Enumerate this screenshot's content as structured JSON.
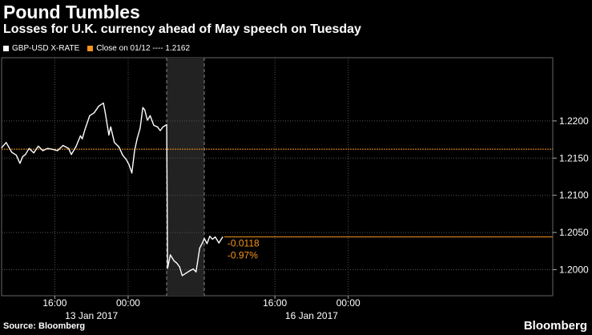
{
  "header": {
    "title": "Pound Tumbles",
    "subtitle": "Losses for U.K. currency ahead of May speech on Tuesday"
  },
  "legend": [
    {
      "label": "GBP-USD X-RATE",
      "color": "#ffffff"
    },
    {
      "label": "Close on 01/12 ---- 1.2162",
      "color": "#f7941d"
    }
  ],
  "footer": {
    "source": "Source: Bloomberg",
    "brand": "Bloomberg"
  },
  "chart_data": {
    "type": "line",
    "title": "Pound Tumbles",
    "subtitle": "Losses for U.K. currency ahead of May speech on Tuesday",
    "xlabel": "",
    "ylabel": "",
    "x_unit": "hours from 16:00 on 13 Jan 2017",
    "ylim": [
      1.1965,
      1.2285
    ],
    "xlim": [
      -5.8,
      54.3
    ],
    "y_ticks": [
      1.2,
      1.205,
      1.21,
      1.215,
      1.22
    ],
    "y_tick_labels": [
      "1.2000",
      "1.2050",
      "1.2100",
      "1.2150",
      "1.2200"
    ],
    "x_ticks": [
      0,
      8,
      24,
      32
    ],
    "x_tick_labels": [
      "16:00",
      "00:00",
      "16:00",
      "00:00"
    ],
    "date_labels": [
      {
        "text": "13 Jan 2017",
        "x": 4
      },
      {
        "text": "16 Jan 2017",
        "x": 28
      }
    ],
    "weekend_gap": {
      "start": 12.2,
      "end": 16.3
    },
    "grid": true,
    "reference_line": {
      "label": "Close on 01/12",
      "value": 1.2162,
      "color": "#f7941d"
    },
    "annotation": {
      "change": "-0.0118",
      "pct": "-0.97%",
      "level": 1.2044
    },
    "series": [
      {
        "name": "GBP-USD X-RATE",
        "color": "#ffffff",
        "x": [
          -5.8,
          -5.3,
          -4.7,
          -4.2,
          -3.8,
          -3.5,
          -3.2,
          -2.8,
          -2.3,
          -1.8,
          -1.3,
          -0.8,
          -0.3,
          0.3,
          0.9,
          1.5,
          1.8,
          2.3,
          2.8,
          3.0,
          3.3,
          3.8,
          4.3,
          4.8,
          5.3,
          5.5,
          5.9,
          6.1,
          6.5,
          7.0,
          7.4,
          7.8,
          8.1,
          8.4,
          8.7,
          9.0,
          9.3,
          9.6,
          9.8,
          10.1,
          10.4,
          10.8,
          11.2,
          11.5,
          11.8,
          12.2,
          12.25,
          12.3,
          12.6,
          13.0,
          13.3,
          13.6,
          13.9,
          14.4,
          14.8,
          15.1,
          15.4,
          15.8,
          16.1,
          16.3,
          16.6,
          16.9,
          17.2,
          17.5,
          17.9,
          18.3
        ],
        "y": [
          1.2164,
          1.2171,
          1.2158,
          1.2154,
          1.2143,
          1.2152,
          1.2155,
          1.2163,
          1.2157,
          1.2166,
          1.216,
          1.2163,
          1.2162,
          1.216,
          1.2167,
          1.2163,
          1.2155,
          1.2165,
          1.218,
          1.2176,
          1.2189,
          1.2207,
          1.2211,
          1.222,
          1.2224,
          1.2211,
          1.2181,
          1.2192,
          1.2171,
          1.2165,
          1.2154,
          1.2148,
          1.2141,
          1.213,
          1.216,
          1.2177,
          1.219,
          1.2218,
          1.2215,
          1.2201,
          1.2207,
          1.2194,
          1.2192,
          1.2187,
          1.2192,
          1.2195,
          1.21,
          1.2002,
          1.202,
          1.2012,
          1.2009,
          1.2004,
          1.1992,
          1.1996,
          1.1999,
          1.2001,
          1.1997,
          1.2029,
          1.2036,
          1.2042,
          1.2035,
          1.2045,
          1.2041,
          1.2044,
          1.2036,
          1.2044
        ]
      }
    ]
  }
}
